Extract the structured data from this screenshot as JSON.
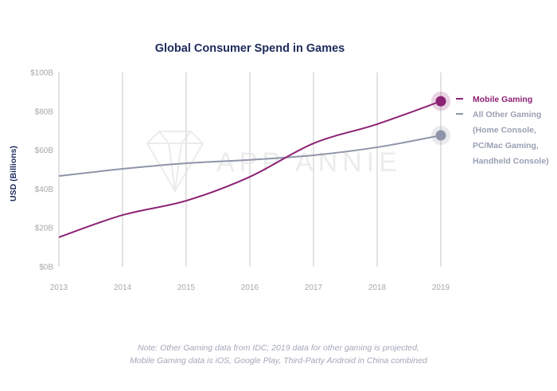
{
  "chart_data": {
    "type": "line",
    "title": "Global Consumer Spend in Games",
    "xlabel": "",
    "ylabel": "USD (Billions)",
    "x": [
      "2013",
      "2014",
      "2015",
      "2016",
      "2017",
      "2018",
      "2019"
    ],
    "ylim": [
      0,
      100
    ],
    "yticks": [
      0,
      20,
      40,
      60,
      80,
      100
    ],
    "ytick_labels": [
      "$0B",
      "$20B",
      "$40B",
      "$60B",
      "$80B",
      "$100B"
    ],
    "grid": "vertical",
    "legend_position": "right",
    "series": [
      {
        "name": "Mobile Gaming",
        "color": "#8c2275",
        "values": [
          15.2,
          26.6,
          34.0,
          46.3,
          63.5,
          73.4,
          85.2
        ]
      },
      {
        "name": "All Other Gaming",
        "name_lines": [
          "All Other Gaming",
          "(Home Console,",
          "PC/Mac Gaming,",
          "Handheld Console)"
        ],
        "color": "#8f94a8",
        "values": [
          46.7,
          50.4,
          53.3,
          55.0,
          57.4,
          61.5,
          67.6
        ]
      }
    ],
    "watermark": "APP ANNIE",
    "annotations": [
      "Note: Other Gaming data from IDC; 2019 data for other gaming is projected,",
      "Mobile Gaming data is iOS, Google Play, Third-Party Android in China combined"
    ]
  }
}
